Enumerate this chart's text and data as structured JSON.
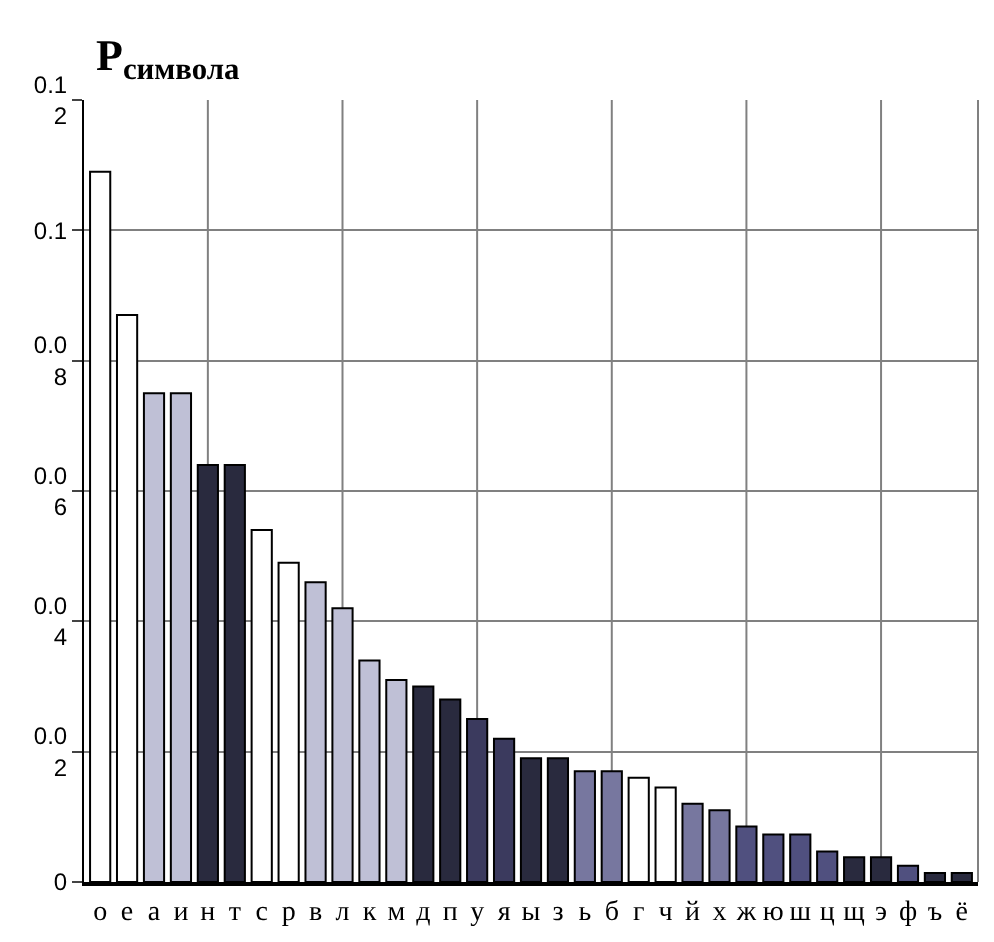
{
  "chart_data": {
    "type": "bar",
    "ylabel": "P$_{символа}$",
    "categories": [
      "о",
      "е",
      "а",
      "и",
      "н",
      "т",
      "с",
      "р",
      "в",
      "л",
      "к",
      "м",
      "д",
      "п",
      "у",
      "я",
      "ы",
      "з",
      "ь",
      "б",
      "г",
      "ч",
      "й",
      "х",
      "ж",
      "ю",
      "ш",
      "ц",
      "щ",
      "э",
      "ф",
      "ъ",
      "ё"
    ],
    "values": [
      0.109,
      0.087,
      0.075,
      0.075,
      0.064,
      0.064,
      0.054,
      0.049,
      0.046,
      0.042,
      0.034,
      0.031,
      0.03,
      0.028,
      0.025,
      0.022,
      0.019,
      0.019,
      0.017,
      0.017,
      0.016,
      0.0145,
      0.012,
      0.011,
      0.0085,
      0.0073,
      0.0073,
      0.0047,
      0.0038,
      0.0038,
      0.0025,
      0.0014,
      0.0014
    ],
    "colors": [
      "#ffffff",
      "#ffffff",
      "#bfc0d6",
      "#bfc0d6",
      "#292a3e",
      "#292a3e",
      "#ffffff",
      "#ffffff",
      "#bfc0d6",
      "#bfc0d6",
      "#bfc0d6",
      "#bfc0d6",
      "#292a3e",
      "#292a3e",
      "#3b3a5e",
      "#3b3a5e",
      "#292a3e",
      "#292a3e",
      "#77779f",
      "#77779f",
      "#ffffff",
      "#ffffff",
      "#77779f",
      "#77779f",
      "#50507f",
      "#50507f",
      "#50507f",
      "#50507f",
      "#292a3e",
      "#292a3e",
      "#50507f",
      "#292a3e",
      "#292a3e"
    ],
    "ylim": [
      0,
      0.12
    ],
    "yticks": [
      0,
      0.02,
      0.04,
      0.06,
      0.08,
      0.1,
      0.12
    ],
    "grid": true
  }
}
